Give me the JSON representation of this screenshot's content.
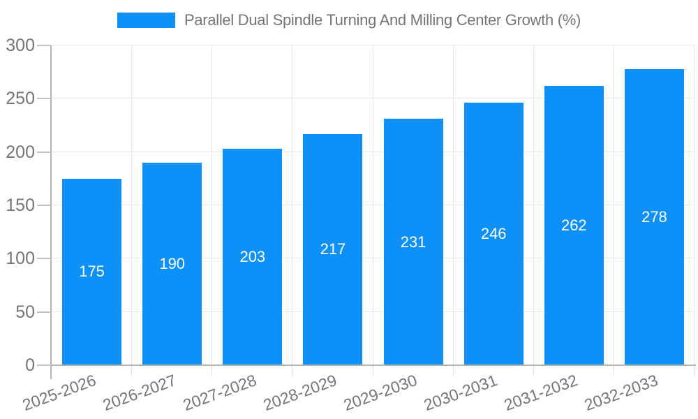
{
  "legend": {
    "label": "Parallel Dual Spindle Turning And Milling Center Growth (%)",
    "swatch_color": "#0e90f9"
  },
  "chart_data": {
    "type": "bar",
    "title": "Parallel Dual Spindle Turning And Milling Center Growth (%)",
    "series_name": "Parallel Dual Spindle Turning And Milling Center Growth (%)",
    "categories": [
      "2025-2026",
      "2026-2027",
      "2027-2028",
      "2028-2029",
      "2029-2030",
      "2030-2031",
      "2031-2032",
      "2032-2033"
    ],
    "values": [
      175,
      190,
      203,
      217,
      231,
      246,
      262,
      278
    ],
    "xlabel": "",
    "ylabel": "",
    "ylim": [
      0,
      300
    ],
    "yticks": [
      0,
      50,
      100,
      150,
      200,
      250,
      300
    ],
    "grid": true,
    "legend_position": "top",
    "value_labels": "inside-center"
  },
  "colors": {
    "bar": "#0e90f9",
    "value_text": "#ffffff",
    "axis_text": "#757575",
    "gridline": "#e6e6e6",
    "axis_line": "#b3b3b3",
    "background": "#ffffff"
  }
}
